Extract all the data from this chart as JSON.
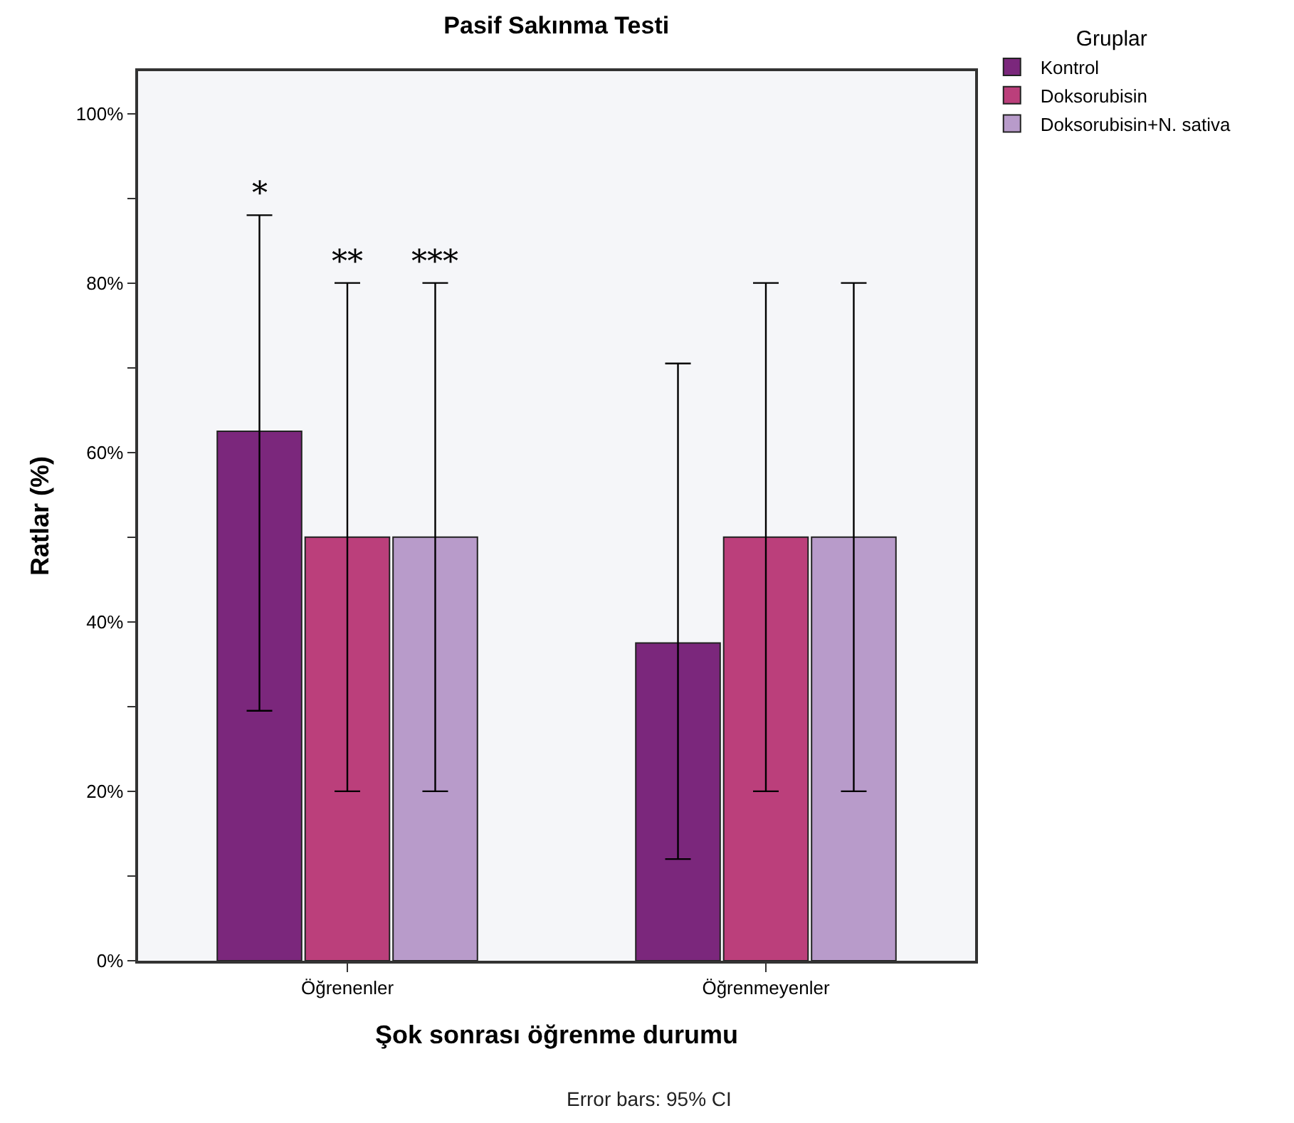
{
  "chart_data": {
    "type": "bar",
    "title": "Pasif Sakınma Testi",
    "xlabel": "Şok sonrası öğrenme durumu",
    "ylabel": "Ratlar (%)",
    "legend_title": "Gruplar",
    "categories": [
      "Öğrenenler",
      "Öğrenmeyenler"
    ],
    "series": [
      {
        "name": "Kontrol",
        "color": "#7b277c",
        "values": [
          62.5,
          37.5
        ],
        "errors": [
          [
            29.5,
            88
          ],
          [
            12,
            70.5
          ]
        ]
      },
      {
        "name": "Doksorubisin",
        "color": "#bb3f7b",
        "values": [
          50,
          50
        ],
        "errors": [
          [
            20,
            80
          ],
          [
            20,
            80
          ]
        ]
      },
      {
        "name": "Doksorubisin+N. sativa",
        "color": "#b89bca",
        "values": [
          50,
          50
        ],
        "errors": [
          [
            20,
            80
          ],
          [
            20,
            80
          ]
        ]
      }
    ],
    "ylim": [
      0,
      105
    ],
    "yticks": [
      {
        "value": 0,
        "label": "0%"
      },
      {
        "value": 10,
        "label": null
      },
      {
        "value": 20,
        "label": "20%"
      },
      {
        "value": 30,
        "label": null
      },
      {
        "value": 40,
        "label": "40%"
      },
      {
        "value": 50,
        "label": null
      },
      {
        "value": 60,
        "label": "60%"
      },
      {
        "value": 70,
        "label": null
      },
      {
        "value": 80,
        "label": "80%"
      },
      {
        "value": 90,
        "label": null
      },
      {
        "value": 100,
        "label": "100%"
      }
    ],
    "grid": false,
    "legend": "top right",
    "annotations": [
      "*",
      "**",
      "***",
      "Error bars: 95% CI"
    ]
  }
}
